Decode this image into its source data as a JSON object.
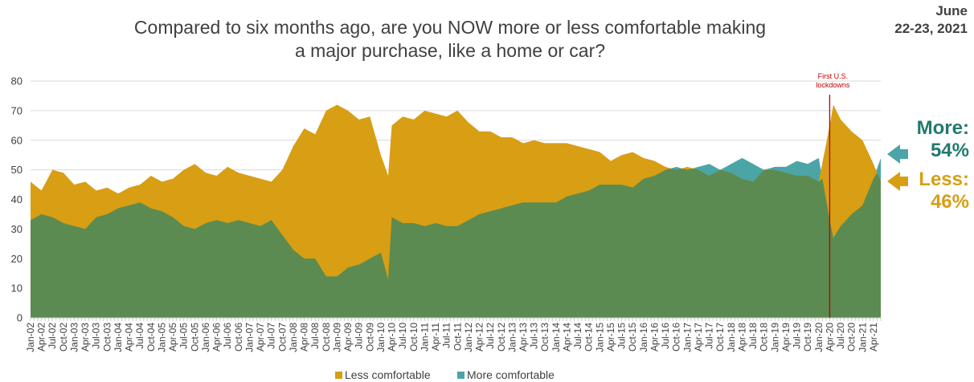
{
  "header": {
    "title_line1": "Compared to six months ago, are you NOW more or less comfortable making",
    "title_line2": "a major purchase, like a home or car?",
    "date_line1": "June",
    "date_line2": "22-23, 2021"
  },
  "callouts": {
    "more_label": "More:",
    "more_value": "54%",
    "less_label": "Less:",
    "less_value": "46%",
    "more_color": "#217a6e",
    "less_color": "#d89e14"
  },
  "annotation": {
    "line1": "First U.S.",
    "line2": "lockdowns",
    "x": "Apr-20"
  },
  "chart_data": {
    "type": "area",
    "ylim": [
      0,
      80
    ],
    "yticks": [
      0,
      10,
      20,
      30,
      40,
      50,
      60,
      70,
      80
    ],
    "grid": true,
    "legend_position": "bottom",
    "x_start": "Jan-02",
    "x_tick_labels": [
      "Jan-02",
      "Apr-02",
      "Jul-02",
      "Oct-02",
      "Jan-03",
      "Apr-03",
      "Jul-03",
      "Oct-03",
      "Jan-04",
      "Apr-04",
      "Jul-04",
      "Oct-04",
      "Jan-05",
      "Apr-05",
      "Jul-05",
      "Oct-05",
      "Jan-06",
      "Apr-06",
      "Jul-06",
      "Oct-06",
      "Jan-07",
      "Apr-07",
      "Jul-07",
      "Oct-07",
      "Jan-08",
      "Apr-08",
      "Jul-08",
      "Oct-08",
      "Jan-09",
      "Apr-09",
      "Jul-09",
      "Oct-09",
      "Jan-10",
      "Apr-10",
      "Jul-10",
      "Oct-10",
      "Jan-11",
      "Apr-11",
      "Jul-11",
      "Oct-11",
      "Jan-12",
      "Apr-12",
      "Jul-12",
      "Oct-12",
      "Jan-13",
      "Apr-13",
      "Jul-13",
      "Oct-13",
      "Jan-14",
      "Apr-14",
      "Jul-14",
      "Oct-14",
      "Jan-15",
      "Apr-15",
      "Jul-15",
      "Oct-15",
      "Jan-16",
      "Apr-16",
      "Jul-16",
      "Oct-16",
      "Jan-17",
      "Apr-17",
      "Jul-17",
      "Oct-17",
      "Jan-18",
      "Apr-18",
      "Jul-18",
      "Oct-18",
      "Jan-19",
      "Apr-19",
      "Jul-19",
      "Oct-19",
      "Jan-20",
      "Apr-20",
      "Jul-20",
      "Oct-20",
      "Jan-21",
      "Apr-21"
    ],
    "series": [
      {
        "name": "Less comfortable",
        "color": "#d89e14",
        "anchors": [
          [
            "Jan-02",
            46
          ],
          [
            "Apr-02",
            43
          ],
          [
            "Jul-02",
            50
          ],
          [
            "Oct-02",
            49
          ],
          [
            "Jan-03",
            45
          ],
          [
            "Apr-03",
            46
          ],
          [
            "Jul-03",
            43
          ],
          [
            "Oct-03",
            44
          ],
          [
            "Jan-04",
            42
          ],
          [
            "Apr-04",
            44
          ],
          [
            "Jul-04",
            45
          ],
          [
            "Oct-04",
            48
          ],
          [
            "Jan-05",
            46
          ],
          [
            "Apr-05",
            47
          ],
          [
            "Jul-05",
            50
          ],
          [
            "Oct-05",
            52
          ],
          [
            "Jan-06",
            49
          ],
          [
            "Apr-06",
            48
          ],
          [
            "Jul-06",
            51
          ],
          [
            "Oct-06",
            49
          ],
          [
            "Jan-07",
            48
          ],
          [
            "Apr-07",
            47
          ],
          [
            "Jul-07",
            46
          ],
          [
            "Oct-07",
            50
          ],
          [
            "Jan-08",
            58
          ],
          [
            "Apr-08",
            64
          ],
          [
            "Jul-08",
            62
          ],
          [
            "Oct-08",
            70
          ],
          [
            "Jan-09",
            72
          ],
          [
            "Apr-09",
            70
          ],
          [
            "Jul-09",
            67
          ],
          [
            "Oct-09",
            68
          ],
          [
            "Jan-10",
            55
          ],
          [
            "Mar-10",
            48
          ],
          [
            "Apr-10",
            65
          ],
          [
            "Jul-10",
            68
          ],
          [
            "Oct-10",
            67
          ],
          [
            "Jan-11",
            70
          ],
          [
            "Apr-11",
            69
          ],
          [
            "Jul-11",
            68
          ],
          [
            "Oct-11",
            70
          ],
          [
            "Jan-12",
            66
          ],
          [
            "Apr-12",
            63
          ],
          [
            "Jul-12",
            63
          ],
          [
            "Oct-12",
            61
          ],
          [
            "Jan-13",
            61
          ],
          [
            "Apr-13",
            59
          ],
          [
            "Jul-13",
            60
          ],
          [
            "Oct-13",
            59
          ],
          [
            "Jan-14",
            59
          ],
          [
            "Apr-14",
            59
          ],
          [
            "Jul-14",
            58
          ],
          [
            "Oct-14",
            57
          ],
          [
            "Jan-15",
            56
          ],
          [
            "Apr-15",
            53
          ],
          [
            "Jul-15",
            55
          ],
          [
            "Oct-15",
            56
          ],
          [
            "Jan-16",
            54
          ],
          [
            "Apr-16",
            53
          ],
          [
            "Jul-16",
            51
          ],
          [
            "Oct-16",
            50
          ],
          [
            "Jan-17",
            51
          ],
          [
            "Apr-17",
            50
          ],
          [
            "Jul-17",
            48
          ],
          [
            "Oct-17",
            50
          ],
          [
            "Jan-18",
            49
          ],
          [
            "Apr-18",
            47
          ],
          [
            "Jul-18",
            46
          ],
          [
            "Oct-18",
            50
          ],
          [
            "Jan-19",
            50
          ],
          [
            "Apr-19",
            49
          ],
          [
            "Jul-19",
            48
          ],
          [
            "Oct-19",
            48
          ],
          [
            "Jan-20",
            46
          ],
          [
            "Apr-20",
            65
          ],
          [
            "May-20",
            72
          ],
          [
            "Jul-20",
            67
          ],
          [
            "Oct-20",
            63
          ],
          [
            "Jan-21",
            60
          ],
          [
            "Apr-21",
            52
          ],
          [
            "Jun-21",
            46
          ]
        ]
      },
      {
        "name": "More comfortable",
        "color": "#4ba5a7",
        "anchors": [
          [
            "Jan-02",
            33
          ],
          [
            "Apr-02",
            35
          ],
          [
            "Jul-02",
            34
          ],
          [
            "Oct-02",
            32
          ],
          [
            "Jan-03",
            31
          ],
          [
            "Apr-03",
            30
          ],
          [
            "Jul-03",
            34
          ],
          [
            "Oct-03",
            35
          ],
          [
            "Jan-04",
            37
          ],
          [
            "Apr-04",
            38
          ],
          [
            "Jul-04",
            39
          ],
          [
            "Oct-04",
            37
          ],
          [
            "Jan-05",
            36
          ],
          [
            "Apr-05",
            34
          ],
          [
            "Jul-05",
            31
          ],
          [
            "Oct-05",
            30
          ],
          [
            "Jan-06",
            32
          ],
          [
            "Apr-06",
            33
          ],
          [
            "Jul-06",
            32
          ],
          [
            "Oct-06",
            33
          ],
          [
            "Jan-07",
            32
          ],
          [
            "Apr-07",
            31
          ],
          [
            "Jul-07",
            33
          ],
          [
            "Oct-07",
            28
          ],
          [
            "Jan-08",
            23
          ],
          [
            "Apr-08",
            20
          ],
          [
            "Jul-08",
            20
          ],
          [
            "Oct-08",
            14
          ],
          [
            "Jan-09",
            14
          ],
          [
            "Apr-09",
            17
          ],
          [
            "Jul-09",
            18
          ],
          [
            "Oct-09",
            20
          ],
          [
            "Jan-10",
            22
          ],
          [
            "Mar-10",
            13
          ],
          [
            "Apr-10",
            34
          ],
          [
            "Jul-10",
            32
          ],
          [
            "Oct-10",
            32
          ],
          [
            "Jan-11",
            31
          ],
          [
            "Apr-11",
            32
          ],
          [
            "Jul-11",
            31
          ],
          [
            "Oct-11",
            31
          ],
          [
            "Jan-12",
            33
          ],
          [
            "Apr-12",
            35
          ],
          [
            "Jul-12",
            36
          ],
          [
            "Oct-12",
            37
          ],
          [
            "Jan-13",
            38
          ],
          [
            "Apr-13",
            39
          ],
          [
            "Jul-13",
            39
          ],
          [
            "Oct-13",
            39
          ],
          [
            "Jan-14",
            39
          ],
          [
            "Apr-14",
            41
          ],
          [
            "Jul-14",
            42
          ],
          [
            "Oct-14",
            43
          ],
          [
            "Jan-15",
            45
          ],
          [
            "Apr-15",
            45
          ],
          [
            "Jul-15",
            45
          ],
          [
            "Oct-15",
            44
          ],
          [
            "Jan-16",
            47
          ],
          [
            "Apr-16",
            48
          ],
          [
            "Jul-16",
            50
          ],
          [
            "Oct-16",
            51
          ],
          [
            "Jan-17",
            50
          ],
          [
            "Apr-17",
            51
          ],
          [
            "Jul-17",
            52
          ],
          [
            "Oct-17",
            50
          ],
          [
            "Jan-18",
            52
          ],
          [
            "Apr-18",
            54
          ],
          [
            "Jul-18",
            52
          ],
          [
            "Oct-18",
            50
          ],
          [
            "Jan-19",
            51
          ],
          [
            "Apr-19",
            51
          ],
          [
            "Jul-19",
            53
          ],
          [
            "Oct-19",
            52
          ],
          [
            "Jan-20",
            54
          ],
          [
            "Apr-20",
            33
          ],
          [
            "May-20",
            27
          ],
          [
            "Jul-20",
            31
          ],
          [
            "Oct-20",
            35
          ],
          [
            "Jan-21",
            38
          ],
          [
            "Apr-21",
            47
          ],
          [
            "Jun-21",
            54
          ]
        ]
      }
    ]
  },
  "legend": {
    "items": [
      {
        "label": "Less comfortable",
        "color": "#d89e14"
      },
      {
        "label": "More comfortable",
        "color": "#4ba5a7"
      }
    ]
  }
}
